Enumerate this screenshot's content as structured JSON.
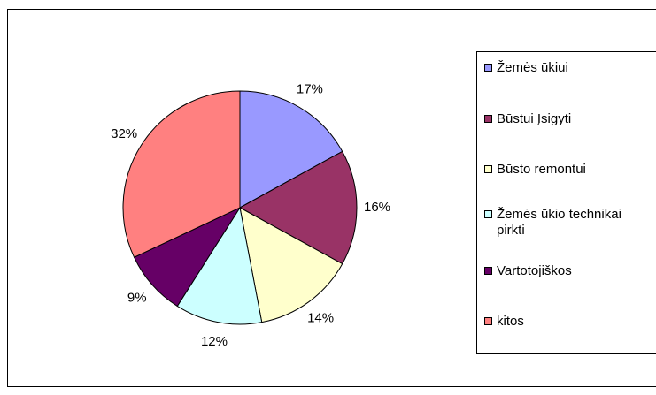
{
  "chart_data": {
    "type": "pie",
    "categories": [
      "Žemės ūkiui",
      "Būstui Įsigyti",
      "Būsto remontui",
      "Žemės ūkio technikai pirkti",
      "Vartotojiškos",
      "kitos"
    ],
    "values": [
      17,
      16,
      14,
      12,
      9,
      32
    ],
    "value_labels": [
      "17%",
      "16%",
      "14%",
      "12%",
      "9%",
      "32%"
    ],
    "colors": [
      "#9999ff",
      "#993366",
      "#ffffcc",
      "#ccffff",
      "#660066",
      "#ff8080"
    ],
    "legend": "right"
  }
}
